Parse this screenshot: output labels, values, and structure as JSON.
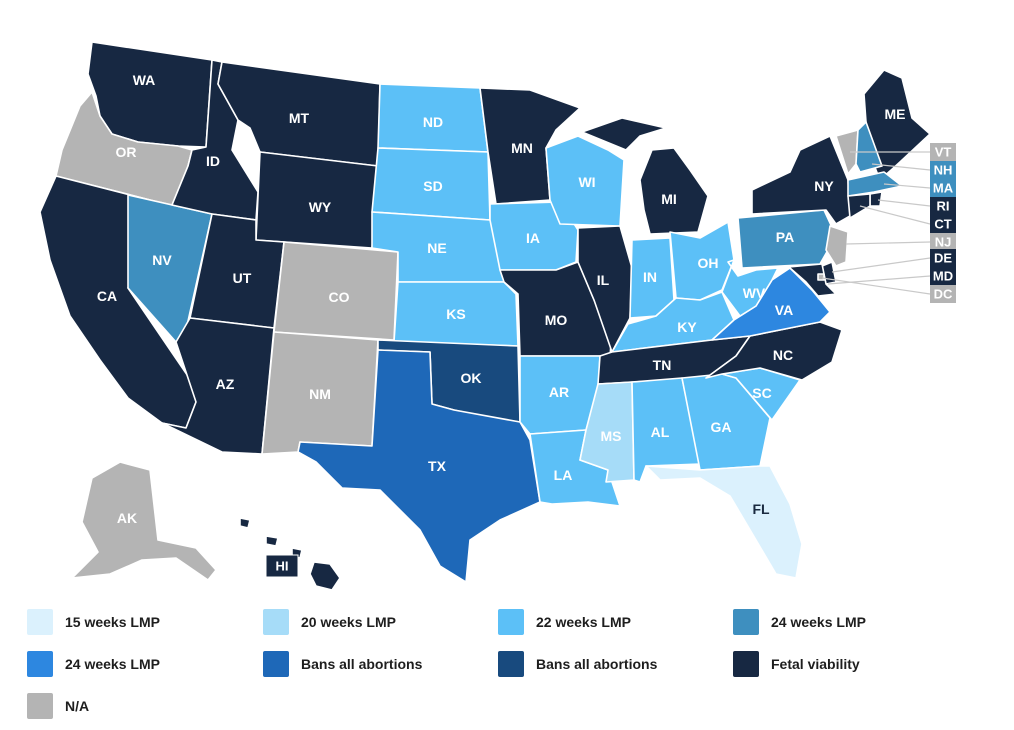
{
  "colors": {
    "weeks15": "#dbf1fd",
    "weeks20": "#a6dcf8",
    "weeks22": "#5cc0f7",
    "weeks24a": "#3e8fbf",
    "weeks24b": "#2d87e0",
    "bans_a": "#1e68b8",
    "bans_b": "#184a7e",
    "viability": "#172842",
    "na": "#b4b4b4"
  },
  "legend": [
    {
      "key": "weeks15",
      "label": "15 weeks LMP"
    },
    {
      "key": "weeks20",
      "label": "20 weeks LMP"
    },
    {
      "key": "weeks22",
      "label": "22 weeks LMP"
    },
    {
      "key": "weeks24a",
      "label": "24 weeks LMP"
    },
    {
      "key": "weeks24b",
      "label": "24 weeks LMP"
    },
    {
      "key": "bans_a",
      "label": "Bans all abortions"
    },
    {
      "key": "bans_b",
      "label": "Bans all abortions"
    },
    {
      "key": "viability",
      "label": "Fetal viability"
    },
    {
      "key": "na",
      "label": "N/A"
    }
  ],
  "states": {
    "WA": {
      "label": "WA",
      "cat": "viability"
    },
    "OR": {
      "label": "OR",
      "cat": "na"
    },
    "CA": {
      "label": "CA",
      "cat": "viability"
    },
    "NV": {
      "label": "NV",
      "cat": "weeks24a"
    },
    "ID": {
      "label": "ID",
      "cat": "viability"
    },
    "MT": {
      "label": "MT",
      "cat": "viability"
    },
    "WY": {
      "label": "WY",
      "cat": "viability"
    },
    "UT": {
      "label": "UT",
      "cat": "viability"
    },
    "AZ": {
      "label": "AZ",
      "cat": "viability"
    },
    "CO": {
      "label": "CO",
      "cat": "na"
    },
    "NM": {
      "label": "NM",
      "cat": "na"
    },
    "ND": {
      "label": "ND",
      "cat": "weeks22"
    },
    "SD": {
      "label": "SD",
      "cat": "weeks22"
    },
    "NE": {
      "label": "NE",
      "cat": "weeks22"
    },
    "KS": {
      "label": "KS",
      "cat": "weeks22"
    },
    "OK": {
      "label": "OK",
      "cat": "bans_b"
    },
    "TX": {
      "label": "TX",
      "cat": "bans_a"
    },
    "MN": {
      "label": "MN",
      "cat": "viability"
    },
    "IA": {
      "label": "IA",
      "cat": "weeks22"
    },
    "MO": {
      "label": "MO",
      "cat": "viability"
    },
    "AR": {
      "label": "AR",
      "cat": "weeks22"
    },
    "LA": {
      "label": "LA",
      "cat": "weeks22"
    },
    "WI": {
      "label": "WI",
      "cat": "weeks22"
    },
    "IL": {
      "label": "IL",
      "cat": "viability"
    },
    "MI": {
      "label": "MI",
      "cat": "viability"
    },
    "IN": {
      "label": "IN",
      "cat": "weeks22"
    },
    "OH": {
      "label": "OH",
      "cat": "weeks22"
    },
    "KY": {
      "label": "KY",
      "cat": "weeks22"
    },
    "TN": {
      "label": "TN",
      "cat": "viability"
    },
    "MS": {
      "label": "MS",
      "cat": "weeks20"
    },
    "AL": {
      "label": "AL",
      "cat": "weeks22"
    },
    "GA": {
      "label": "GA",
      "cat": "weeks22"
    },
    "FL": {
      "label": "FL",
      "cat": "weeks15"
    },
    "SC": {
      "label": "SC",
      "cat": "weeks22"
    },
    "NC": {
      "label": "NC",
      "cat": "viability"
    },
    "VA": {
      "label": "VA",
      "cat": "weeks24b"
    },
    "WV": {
      "label": "WV",
      "cat": "weeks22"
    },
    "PA": {
      "label": "PA",
      "cat": "weeks24a"
    },
    "NY": {
      "label": "NY",
      "cat": "viability"
    },
    "ME": {
      "label": "ME",
      "cat": "viability"
    },
    "VT": {
      "label": "VT",
      "cat": "na"
    },
    "NH": {
      "label": "NH",
      "cat": "weeks24a"
    },
    "MA": {
      "label": "MA",
      "cat": "weeks24a"
    },
    "RI": {
      "label": "RI",
      "cat": "viability"
    },
    "CT": {
      "label": "CT",
      "cat": "viability"
    },
    "NJ": {
      "label": "NJ",
      "cat": "na"
    },
    "DE": {
      "label": "DE",
      "cat": "viability"
    },
    "MD": {
      "label": "MD",
      "cat": "viability"
    },
    "DC": {
      "label": "DC",
      "cat": "na"
    },
    "AK": {
      "label": "AK",
      "cat": "na"
    },
    "HI": {
      "label": "HI",
      "cat": "viability"
    }
  }
}
